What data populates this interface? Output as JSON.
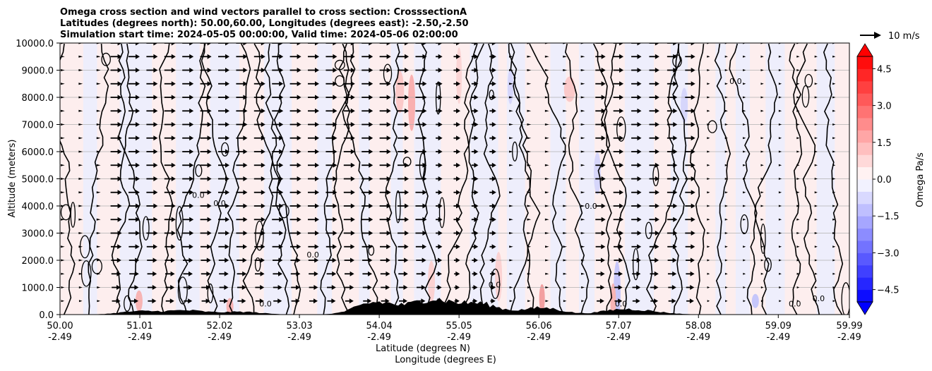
{
  "title": {
    "line1": "Omega cross section and wind vectors parallel to cross section: CrosssectionA",
    "line2": "Latitudes (degrees north): 50.00,60.00, Longitudes (degrees east): -2.50,-2.50",
    "line3": "Simulation start time: 2024-05-05 00:00:00, Valid time: 2024-05-06 02:00:00"
  },
  "quiver_key": "10 m/s",
  "chart_data": {
    "type": "heatmap",
    "description_elements": [
      "omega filled contours",
      "zero contour lines",
      "wind vectors",
      "terrain"
    ],
    "ylabel": "Altitude (meters)",
    "xlabel_lat": "Latitude (degrees N)",
    "xlabel_lon": "Longitude (degrees E)",
    "xlim": [
      50.0,
      59.99
    ],
    "ylim": [
      0,
      10000
    ],
    "grid": "horizontal",
    "x_ticks": [
      {
        "lat": "50.00",
        "lon": "-2.49",
        "v": 50.0
      },
      {
        "lat": "51.01",
        "lon": "-2.49",
        "v": 51.01
      },
      {
        "lat": "52.02",
        "lon": "-2.49",
        "v": 52.02
      },
      {
        "lat": "53.03",
        "lon": "-2.49",
        "v": 53.03
      },
      {
        "lat": "54.04",
        "lon": "-2.49",
        "v": 54.04
      },
      {
        "lat": "55.05",
        "lon": "-2.49",
        "v": 55.05
      },
      {
        "lat": "56.06",
        "lon": "-2.49",
        "v": 56.06
      },
      {
        "lat": "57.07",
        "lon": "-2.49",
        "v": 57.07
      },
      {
        "lat": "58.08",
        "lon": "-2.49",
        "v": 58.08
      },
      {
        "lat": "59.09",
        "lon": "-2.49",
        "v": 59.09
      },
      {
        "lat": "59.99",
        "lon": "-2.49",
        "v": 59.99
      }
    ],
    "y_ticks": [
      {
        "label": "0.0",
        "v": 0
      },
      {
        "label": "1000.0",
        "v": 1000
      },
      {
        "label": "2000.0",
        "v": 2000
      },
      {
        "label": "3000.0",
        "v": 3000
      },
      {
        "label": "4000.0",
        "v": 4000
      },
      {
        "label": "5000.0",
        "v": 5000
      },
      {
        "label": "6000.0",
        "v": 6000
      },
      {
        "label": "7000.0",
        "v": 7000
      },
      {
        "label": "8000.0",
        "v": 8000
      },
      {
        "label": "9000.0",
        "v": 9000
      },
      {
        "label": "10000.0",
        "v": 10000
      }
    ],
    "colorbar": {
      "label": "Omega Pa/s",
      "range": [
        -5.0,
        5.0
      ],
      "ticks": [
        {
          "label": "−4.5",
          "v": -4.5
        },
        {
          "label": "−3.0",
          "v": -3.0
        },
        {
          "label": "−1.5",
          "v": -1.5
        },
        {
          "label": "0.0",
          "v": 0.0
        },
        {
          "label": "1.5",
          "v": 1.5
        },
        {
          "label": "3.0",
          "v": 3.0
        },
        {
          "label": "4.5",
          "v": 4.5
        }
      ],
      "colormap": "bwr",
      "levels": 20
    },
    "contour_labels": [
      {
        "text": "0.0",
        "lat": 51.75,
        "alt": 4300
      },
      {
        "text": "0.0",
        "lat": 52.02,
        "alt": 4000
      },
      {
        "text": "0.0",
        "lat": 53.2,
        "alt": 2100
      },
      {
        "text": "0.0",
        "lat": 55.5,
        "alt": 1000
      },
      {
        "text": "0.0",
        "lat": 56.72,
        "alt": 3900
      },
      {
        "text": "0.0",
        "lat": 58.55,
        "alt": 8500
      },
      {
        "text": "0.0",
        "lat": 59.3,
        "alt": 300
      },
      {
        "text": "0.0",
        "lat": 59.6,
        "alt": 500
      },
      {
        "text": "0.0",
        "lat": 52.6,
        "alt": 300
      },
      {
        "text": "0.0",
        "lat": 57.1,
        "alt": 300
      }
    ],
    "terrain_peaks": [
      {
        "lat": 51.0,
        "alt": 120
      },
      {
        "lat": 51.6,
        "alt": 150
      },
      {
        "lat": 52.3,
        "alt": 100
      },
      {
        "lat": 54.0,
        "alt": 450
      },
      {
        "lat": 54.7,
        "alt": 550
      },
      {
        "lat": 55.3,
        "alt": 400
      },
      {
        "lat": 56.1,
        "alt": 250
      },
      {
        "lat": 57.1,
        "alt": 180
      },
      {
        "lat": 57.5,
        "alt": 80
      }
    ],
    "wind_regions": [
      {
        "lat_from": 50.0,
        "lat_to": 50.5,
        "speed_ms": 3
      },
      {
        "lat_from": 50.5,
        "lat_to": 54.6,
        "speed_ms": 10
      },
      {
        "lat_from": 54.6,
        "lat_to": 55.5,
        "speed_ms": 6
      },
      {
        "lat_from": 55.5,
        "lat_to": 56.7,
        "speed_ms": 3
      },
      {
        "lat_from": 56.7,
        "lat_to": 58.0,
        "speed_ms": 9
      },
      {
        "lat_from": 58.0,
        "lat_to": 59.99,
        "speed_ms": 2
      }
    ]
  }
}
